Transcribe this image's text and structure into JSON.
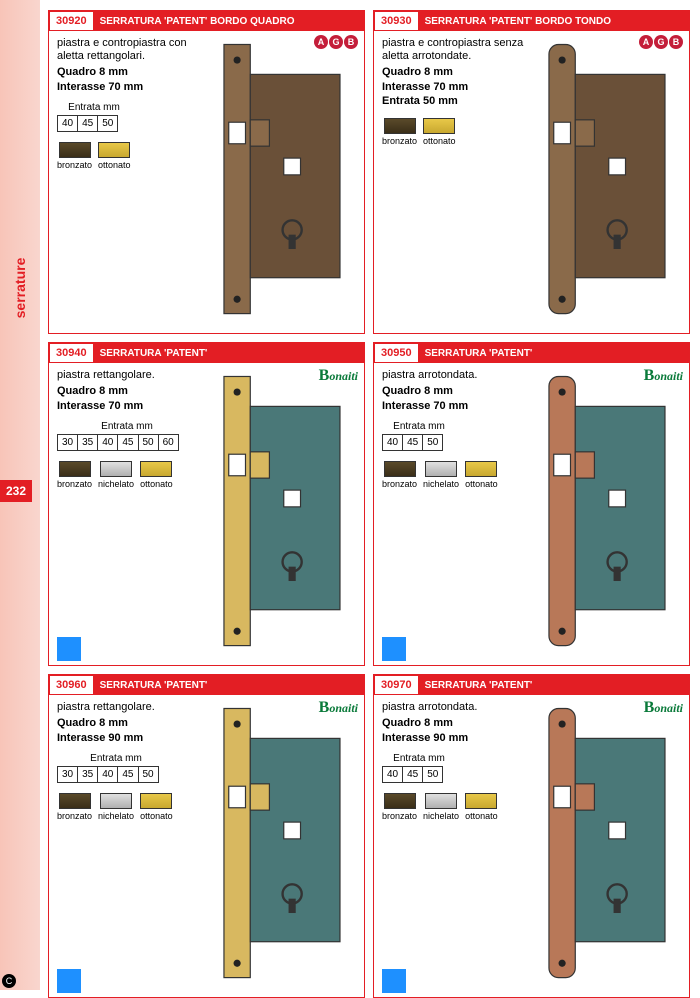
{
  "sidebar": {
    "label": "serrature",
    "page_number": "232"
  },
  "brands": {
    "agb_letters": [
      "A",
      "G",
      "B"
    ],
    "bonaiti": "onaiti",
    "bonaiti_b": "B"
  },
  "finishes": {
    "bronzato": {
      "label": "bronzato",
      "color1": "#5a4a2a",
      "color2": "#3a2e18"
    },
    "ottonato": {
      "label": "ottonato",
      "color1": "#e8c848",
      "color2": "#c8a830"
    },
    "nichelato": {
      "label": "nichelato",
      "color1": "#e0e0e0",
      "color2": "#b0b0b0"
    }
  },
  "entrata_label": "Entrata mm",
  "cards": [
    {
      "code": "30920",
      "title": "SERRATURA 'PATENT' BORDO QUADRO",
      "desc": "piastra e contropiastra con aletta rettangolari.",
      "spec1": "Quadro 8 mm",
      "spec2": "Interasse 70 mm",
      "entrata": [
        "40",
        "45",
        "50"
      ],
      "finishes": [
        "bronzato",
        "ottonato"
      ],
      "brand": "agb",
      "lock_style": "bronze_square",
      "blue_badge": false
    },
    {
      "code": "30930",
      "title": "SERRATURA 'PATENT' BORDO TONDO",
      "desc": "piastra e contropiastra senza aletta arrotondate.",
      "spec1": "Quadro 8 mm",
      "spec2": "Interasse 70 mm",
      "entrata_single": "Entrata 50 mm",
      "finishes": [
        "bronzato",
        "ottonato"
      ],
      "brand": "agb",
      "lock_style": "bronze_round",
      "blue_badge": false
    },
    {
      "code": "30940",
      "title": "SERRATURA 'PATENT'",
      "desc": "piastra rettangolare.",
      "spec1": "Quadro 8 mm",
      "spec2": "Interasse 70 mm",
      "entrata": [
        "30",
        "35",
        "40",
        "45",
        "50",
        "60"
      ],
      "finishes": [
        "bronzato",
        "nichelato",
        "ottonato"
      ],
      "brand": "bonaiti",
      "lock_style": "brass_square",
      "blue_badge": true
    },
    {
      "code": "30950",
      "title": "SERRATURA 'PATENT'",
      "desc": "piastra arrotondata.",
      "spec1": "Quadro 8 mm",
      "spec2": "Interasse 70 mm",
      "entrata": [
        "40",
        "45",
        "50"
      ],
      "finishes": [
        "bronzato",
        "nichelato",
        "ottonato"
      ],
      "brand": "bonaiti",
      "lock_style": "copper_round",
      "blue_badge": true
    },
    {
      "code": "30960",
      "title": "SERRATURA 'PATENT'",
      "desc": "piastra rettangolare.",
      "spec1": "Quadro 8 mm",
      "spec2": "Interasse 90 mm",
      "entrata": [
        "30",
        "35",
        "40",
        "45",
        "50"
      ],
      "finishes": [
        "bronzato",
        "nichelato",
        "ottonato"
      ],
      "brand": "bonaiti",
      "lock_style": "brass_square",
      "blue_badge": true
    },
    {
      "code": "30970",
      "title": "SERRATURA 'PATENT'",
      "desc": "piastra arrotondata.",
      "spec1": "Quadro 8 mm",
      "spec2": "Interasse 90 mm",
      "entrata": [
        "40",
        "45",
        "50"
      ],
      "finishes": [
        "bronzato",
        "nichelato",
        "ottonato"
      ],
      "brand": "bonaiti",
      "lock_style": "copper_round",
      "blue_badge": true
    }
  ],
  "lock_colors": {
    "bronze_square": {
      "plate": "#8a6a4a",
      "body": "#6a5038"
    },
    "bronze_round": {
      "plate": "#8a6a4a",
      "body": "#6a5038"
    },
    "brass_square": {
      "plate": "#d8b860",
      "body": "#4a7878"
    },
    "copper_round": {
      "plate": "#b87858",
      "body": "#4a7878"
    }
  }
}
